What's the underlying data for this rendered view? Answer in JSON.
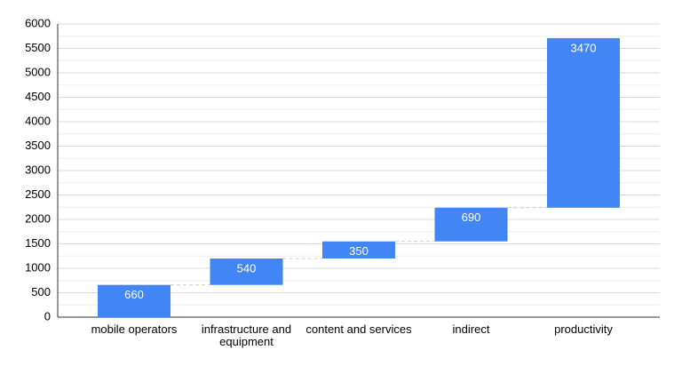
{
  "chart_data": {
    "type": "waterfall",
    "categories": [
      "mobile operators",
      "infrastructure and equipment",
      "content and services",
      "indirect",
      "productivity"
    ],
    "values": [
      660,
      540,
      350,
      690,
      3470
    ],
    "color": "#4285f4",
    "ylim": [
      0,
      6000
    ],
    "yticks": [
      0,
      500,
      1000,
      1500,
      2000,
      2500,
      3000,
      3500,
      4000,
      4500,
      5000,
      5500,
      6000
    ],
    "grid": true
  }
}
